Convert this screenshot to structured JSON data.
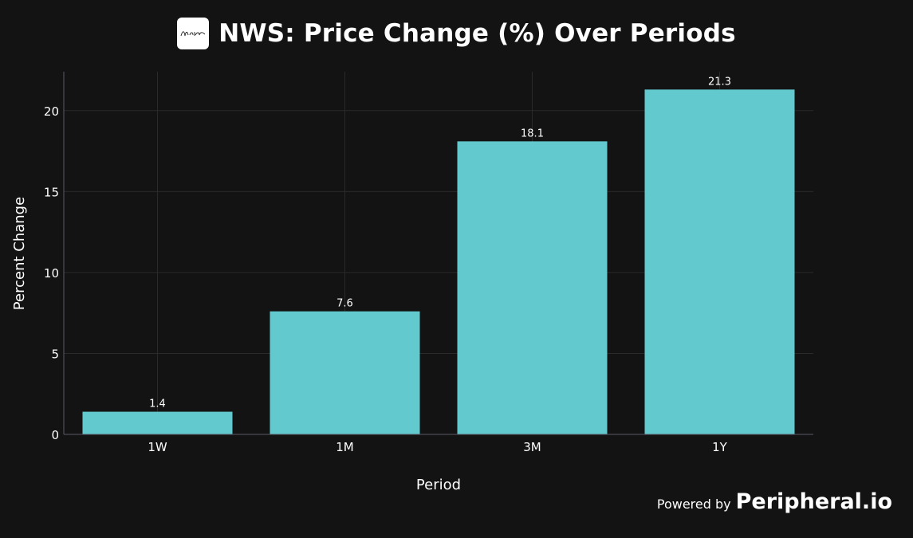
{
  "logo": {
    "icon": "news-corp-logo-icon",
    "text": "News Corp"
  },
  "footer": {
    "powered_label": "Powered by",
    "brand": "Peripheral.io"
  },
  "chart_data": {
    "type": "bar",
    "title": "NWS: Price Change (%) Over Periods",
    "xlabel": "Period",
    "ylabel": "Percent Change",
    "categories": [
      "1W",
      "1M",
      "3M",
      "1Y"
    ],
    "values": [
      1.4,
      7.6,
      18.1,
      21.3
    ],
    "value_labels": [
      "1.4",
      "7.6",
      "18.1",
      "21.3"
    ],
    "yticks": [
      0,
      5,
      10,
      15,
      20
    ],
    "ylim": [
      0,
      22.4
    ],
    "grid": true,
    "colors": {
      "bar": "#62c9cf",
      "background": "#131313",
      "grid": "#2a2a2a",
      "axis": "#5a5a66",
      "text": "#ffffff"
    }
  }
}
